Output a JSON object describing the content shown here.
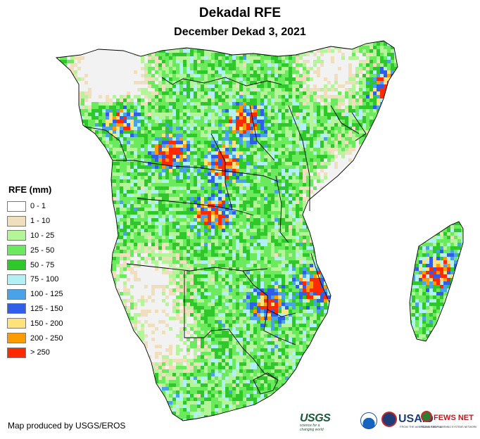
{
  "title": "Dekadal RFE",
  "subtitle": "December Dekad 3, 2021",
  "legend": {
    "title": "RFE (mm)",
    "items": [
      {
        "label": "0 - 1",
        "color": "#ffffff"
      },
      {
        "label": "1 - 10",
        "color": "#f0dfbd"
      },
      {
        "label": "10 - 25",
        "color": "#b4f59a"
      },
      {
        "label": "25 - 50",
        "color": "#6cea5d"
      },
      {
        "label": "50 - 75",
        "color": "#2ec82b"
      },
      {
        "label": "75 - 100",
        "color": "#b1f1f6"
      },
      {
        "label": "100 - 125",
        "color": "#4aa3e9"
      },
      {
        "label": "125 - 150",
        "color": "#2f5fe8"
      },
      {
        "label": "150 - 200",
        "color": "#ffe27a"
      },
      {
        "label": "200 - 250",
        "color": "#ff9a00"
      },
      {
        "label": "> 250",
        "color": "#ff2a00"
      }
    ]
  },
  "credit": "Map produced by USGS/EROS",
  "logos": {
    "usgs": "USGS",
    "usgs_tagline": "science for a changing world",
    "noaa": "noaa-emblem",
    "usaid": "USAID",
    "usaid_tagline": "FROM THE AMERICAN PEOPLE",
    "fews": "FEWS NET",
    "fews_tagline": "FAMINE EARLY WARNING SYSTEMS NETWORK"
  },
  "icons": [
    "noaa-logo-icon",
    "usaid-seal-icon",
    "fews-globe-icon"
  ]
}
